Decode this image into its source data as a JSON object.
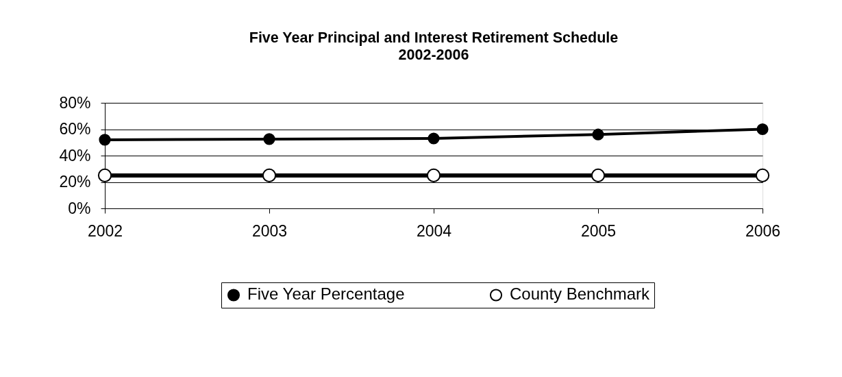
{
  "chart_data": {
    "type": "line",
    "title": "Five Year Principal and Interest Retirement Schedule",
    "subtitle": "2002-2006",
    "categories": [
      "2002",
      "2003",
      "2004",
      "2005",
      "2006"
    ],
    "series": [
      {
        "name": "Five Year Percentage",
        "color": "#000000",
        "values": [
          52,
          52.5,
          53,
          56,
          60
        ]
      },
      {
        "name": "County Benchmark",
        "color": "#000000",
        "values": [
          25,
          25,
          25,
          25,
          25
        ]
      }
    ],
    "ylim": [
      0,
      80
    ],
    "yticks": [
      {
        "value": 0,
        "label": "0%"
      },
      {
        "value": 20,
        "label": "20%"
      },
      {
        "value": 40,
        "label": "40%"
      },
      {
        "value": 60,
        "label": "60%"
      },
      {
        "value": 80,
        "label": "80%"
      }
    ],
    "grid": "y",
    "legend": "bottom",
    "marker": "circle",
    "line_style": "solid"
  }
}
